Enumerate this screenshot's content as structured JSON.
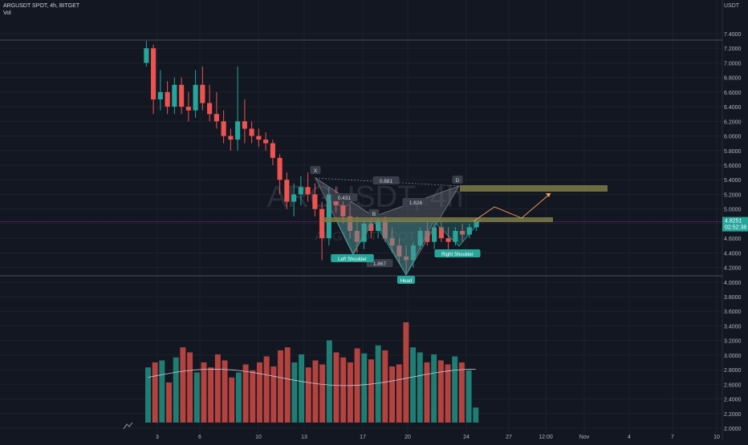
{
  "legend": {
    "title": "ARGUSDT SPOT, 4h, BITGET",
    "vol": "Vol"
  },
  "axis": {
    "currency": "USDT"
  },
  "watermark": {
    "main": "ARGUSDT, 4h",
    "sub": "ARGUSDT SPOT"
  },
  "price_label": {
    "value": "4.8251",
    "timer": "02:52:38"
  },
  "colors": {
    "background": "#131722",
    "up": "#26a69a",
    "down": "#ef5350",
    "grid": "#1e222d",
    "text": "#b2b5be",
    "zone": "#7e7d48",
    "projection": "#f7a35c"
  },
  "chart_data": {
    "type": "candlestick",
    "title": "ARGUSDT SPOT, 4h, BITGET",
    "y_ticks": [
      "7.4000",
      "7.2000",
      "7.0000",
      "6.8000",
      "6.6000",
      "6.4000",
      "6.2000",
      "6.0000",
      "5.8000",
      "5.6000",
      "5.4000",
      "5.2000",
      "5.0000",
      "4.8000",
      "4.6000",
      "4.4000",
      "4.2000",
      "4.0000",
      "3.8000",
      "3.6000",
      "3.4000",
      "3.2000",
      "3.0000",
      "2.8000",
      "2.6000",
      "2.4000",
      "2.2000",
      "2.0000"
    ],
    "x_ticks": [
      "3",
      "6",
      "10",
      "13",
      "17",
      "20",
      "24",
      "27",
      "12:00",
      "Nov",
      "4",
      "7",
      "10"
    ],
    "ylim": [
      1.98,
      7.62
    ],
    "grid": true,
    "candles": [
      {
        "o": 7.0,
        "h": 7.3,
        "c": 7.2
      },
      {
        "o": 7.2,
        "h": 7.25,
        "l": 6.3,
        "c": 6.5
      },
      {
        "o": 6.5,
        "h": 6.9,
        "l": 6.35,
        "c": 6.6
      },
      {
        "o": 6.6,
        "h": 6.75,
        "l": 6.3,
        "c": 6.4
      },
      {
        "o": 6.4,
        "h": 6.8,
        "l": 6.3,
        "c": 6.7
      },
      {
        "o": 6.7,
        "h": 6.8,
        "l": 6.3,
        "c": 6.4
      },
      {
        "o": 6.4,
        "h": 6.6,
        "l": 6.2,
        "c": 6.35
      },
      {
        "o": 6.35,
        "h": 6.9,
        "l": 6.25,
        "c": 6.7
      },
      {
        "o": 6.7,
        "h": 6.95,
        "l": 6.35,
        "c": 6.45
      },
      {
        "o": 6.45,
        "h": 6.7,
        "l": 6.2,
        "c": 6.3
      },
      {
        "o": 6.3,
        "h": 6.6,
        "l": 6.1,
        "c": 6.2
      },
      {
        "o": 6.2,
        "h": 6.35,
        "l": 5.9,
        "c": 6.0
      },
      {
        "o": 6.0,
        "h": 6.1,
        "l": 5.8,
        "c": 5.95
      },
      {
        "o": 5.95,
        "h": 6.95,
        "l": 5.8,
        "c": 6.2
      },
      {
        "o": 6.2,
        "h": 6.5,
        "l": 5.9,
        "c": 6.1
      },
      {
        "o": 6.1,
        "h": 6.2,
        "l": 5.9,
        "c": 6.0
      },
      {
        "o": 6.0,
        "h": 6.1,
        "l": 5.85,
        "c": 5.95
      },
      {
        "o": 5.95,
        "h": 6.05,
        "l": 5.8,
        "c": 5.9
      },
      {
        "o": 5.9,
        "h": 5.95,
        "l": 5.6,
        "c": 5.7
      },
      {
        "o": 5.7,
        "h": 5.75,
        "l": 5.2,
        "c": 5.4
      },
      {
        "o": 5.4,
        "h": 5.5,
        "l": 5.0,
        "c": 5.1
      },
      {
        "o": 5.1,
        "h": 5.35,
        "l": 4.9,
        "c": 5.2
      },
      {
        "o": 5.2,
        "h": 5.45,
        "l": 5.05,
        "c": 5.3
      },
      {
        "o": 5.3,
        "h": 5.5,
        "l": 5.1,
        "c": 5.2
      },
      {
        "o": 5.2,
        "h": 5.35,
        "l": 4.9,
        "c": 5.0
      },
      {
        "o": 5.0,
        "h": 5.1,
        "l": 4.3,
        "c": 4.6
      },
      {
        "o": 4.6,
        "h": 5.3,
        "l": 4.5,
        "c": 5.2
      },
      {
        "o": 5.2,
        "h": 5.3,
        "l": 4.95,
        "c": 5.05
      },
      {
        "o": 5.05,
        "h": 5.2,
        "l": 4.8,
        "c": 4.9
      },
      {
        "o": 4.9,
        "h": 5.05,
        "l": 4.6,
        "c": 4.7
      },
      {
        "o": 4.7,
        "h": 4.9,
        "l": 4.4,
        "c": 4.55
      },
      {
        "o": 4.55,
        "h": 4.85,
        "l": 4.45,
        "c": 4.8
      },
      {
        "o": 4.8,
        "h": 4.95,
        "l": 4.6,
        "c": 4.7
      },
      {
        "o": 4.7,
        "h": 4.95,
        "l": 4.6,
        "c": 4.85
      },
      {
        "o": 4.85,
        "h": 4.9,
        "l": 4.55,
        "c": 4.6
      },
      {
        "o": 4.6,
        "h": 4.75,
        "l": 4.4,
        "c": 4.5
      },
      {
        "o": 4.5,
        "h": 4.6,
        "l": 4.25,
        "c": 4.35
      },
      {
        "o": 4.35,
        "h": 4.5,
        "l": 4.1,
        "c": 4.3
      },
      {
        "o": 4.3,
        "h": 4.55,
        "l": 4.2,
        "c": 4.5
      },
      {
        "o": 4.5,
        "h": 4.75,
        "l": 4.45,
        "c": 4.7
      },
      {
        "o": 4.7,
        "h": 4.85,
        "l": 4.5,
        "c": 4.55
      },
      {
        "o": 4.55,
        "h": 4.8,
        "l": 4.45,
        "c": 4.75
      },
      {
        "o": 4.75,
        "h": 4.85,
        "l": 4.55,
        "c": 4.6
      },
      {
        "o": 4.6,
        "h": 4.75,
        "l": 4.45,
        "c": 4.55
      },
      {
        "o": 4.55,
        "h": 4.75,
        "l": 4.5,
        "c": 4.7
      },
      {
        "o": 4.7,
        "h": 4.8,
        "l": 4.55,
        "c": 4.65
      },
      {
        "o": 4.65,
        "h": 4.8,
        "l": 4.6,
        "c": 4.75
      },
      {
        "o": 4.75,
        "h": 4.85,
        "l": 4.7,
        "c": 4.825
      }
    ],
    "volume": [
      0.55,
      0.6,
      0.62,
      0.4,
      0.65,
      0.75,
      0.7,
      0.5,
      0.6,
      0.55,
      0.68,
      0.62,
      0.45,
      0.5,
      0.58,
      0.52,
      0.6,
      0.66,
      0.56,
      0.72,
      0.75,
      0.6,
      0.68,
      0.55,
      0.62,
      0.58,
      0.82,
      0.7,
      0.65,
      0.6,
      0.74,
      0.69,
      0.63,
      0.77,
      0.72,
      0.56,
      0.58,
      1.0,
      0.75,
      0.7,
      0.6,
      0.68,
      0.62,
      0.58,
      0.66,
      0.6,
      0.52,
      0.15
    ]
  },
  "pattern": {
    "labels": [
      "X",
      "B",
      "D",
      "0.881",
      "0.431",
      "1.626",
      "1.867"
    ],
    "tags": [
      "Left Shoulder",
      "Head",
      "Right Shoulder"
    ]
  }
}
